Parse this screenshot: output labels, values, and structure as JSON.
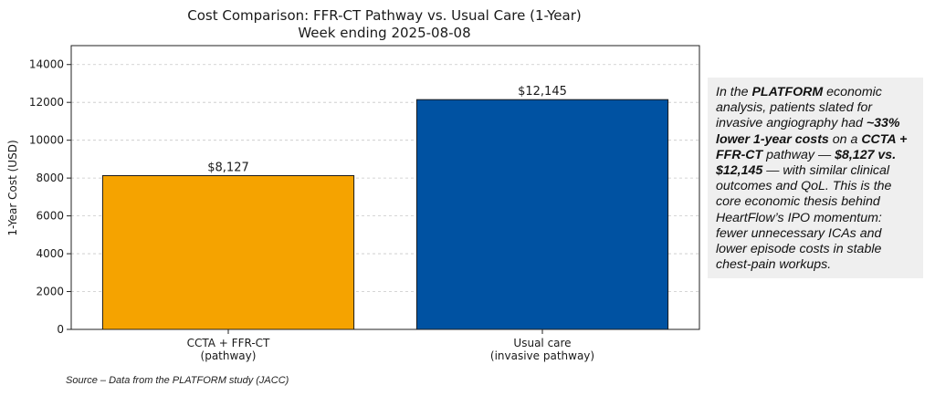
{
  "chart_data": {
    "type": "bar",
    "title": "Cost Comparison: FFR-CT Pathway vs. Usual Care (1-Year)",
    "subtitle": "Week ending 2025-08-08",
    "categories": [
      "CCTA + FFR-CT\n(pathway)",
      "Usual care\n(invasive pathway)"
    ],
    "values": [
      8127,
      12145
    ],
    "value_labels": [
      "$8,127",
      "$12,145"
    ],
    "bar_colors": [
      "#f5a300",
      "#0052a2"
    ],
    "xlabel": "",
    "ylabel": "1-Year Cost (USD)",
    "ylim": [
      0,
      15000
    ],
    "yticks": [
      0,
      2000,
      4000,
      6000,
      8000,
      10000,
      12000,
      14000
    ],
    "grid": "y-dashed"
  },
  "note": {
    "segments": [
      {
        "text": "In the ",
        "bold": false
      },
      {
        "text": "PLATFORM",
        "bold": true
      },
      {
        "text": " economic analysis, patients slated for invasive angiography had ",
        "bold": false
      },
      {
        "text": "~33% lower 1-year costs",
        "bold": true
      },
      {
        "text": " on a ",
        "bold": false
      },
      {
        "text": "CCTA + FFR-CT",
        "bold": true
      },
      {
        "text": " pathway — ",
        "bold": false
      },
      {
        "text": "$8,127 vs. $12,145",
        "bold": true
      },
      {
        "text": " — with similar clinical outcomes and QoL. This is the core economic thesis behind HeartFlow’s IPO momentum: fewer unnecessary ICAs and lower episode costs in stable chest-pain workups.",
        "bold": false
      }
    ]
  },
  "source": "Source – Data from the PLATFORM study (JACC)"
}
